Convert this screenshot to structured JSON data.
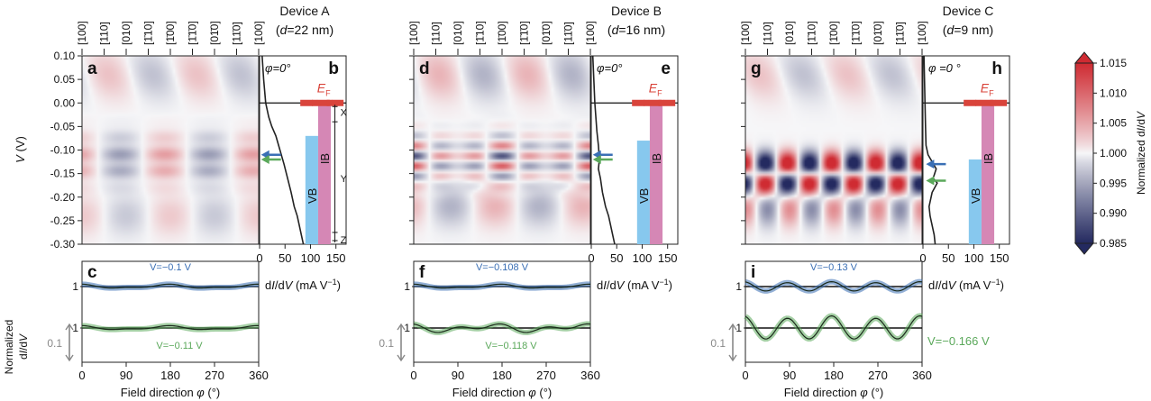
{
  "devices": [
    {
      "title": "Device A",
      "thickness": "(d=22 nm)",
      "phi_label": "φ=0°",
      "map_letter": "a",
      "spectrum_letter": "b",
      "osc_letter": "c",
      "v_blue": "V=−0.1 V",
      "v_green": "V=−0.11 V",
      "ef_label": "EF",
      "vb_label": "VB",
      "ib_label": "IB",
      "region_labels": [
        "X",
        "Y",
        "Z"
      ]
    },
    {
      "title": "Device B",
      "thickness": "(d=16 nm)",
      "phi_label": "φ=0°",
      "map_letter": "d",
      "spectrum_letter": "e",
      "osc_letter": "f",
      "v_blue": "V=−0.108 V",
      "v_green": "V=−0.118 V",
      "ef_label": "EF",
      "vb_label": "VB",
      "ib_label": "IB",
      "region_labels": []
    },
    {
      "title": "Device C",
      "thickness": "(d=9 nm)",
      "phi_label": "φ =0 °",
      "map_letter": "g",
      "spectrum_letter": "h",
      "osc_letter": "i",
      "v_blue": "V=−0.13 V",
      "v_green": "V=−0.166 V",
      "ef_label": "EF",
      "vb_label": "VB",
      "ib_label": "IB",
      "region_labels": []
    }
  ],
  "direction_labels": [
    "[100]",
    "[110]",
    "[010]",
    "[1̄10]",
    "[1̄00]",
    "[1̄1̄0]",
    "[01̄0]",
    "[11̄0]",
    "[100]"
  ],
  "axes": {
    "v_label": "V (V)",
    "v_ticks": [
      "0.10",
      "0.05",
      "0.00",
      "-0.05",
      "-0.10",
      "-0.15",
      "-0.20",
      "-0.25",
      "-0.30"
    ],
    "didv_label": "dI/dV (mA V−1)",
    "didv_ticks": [
      "0",
      "50",
      "100",
      "150"
    ],
    "phi_label": "Field direction φ (°)",
    "phi_ticks": [
      "0",
      "90",
      "180",
      "270",
      "360"
    ],
    "norm_label_line1": "Normalized",
    "norm_label_line2": "dI/dV",
    "one_label": "1",
    "scale_label": "0.1"
  },
  "colorbar": {
    "label": "Normalized dI/dV",
    "ticks": [
      "1.015",
      "1.010",
      "1.005",
      "1.000",
      "0.995",
      "0.990",
      "0.985"
    ]
  },
  "colors": {
    "red": "#d7373c",
    "blue": "#2c3a78",
    "arrow_blue": "#3a6fb5",
    "arrow_green": "#5aa85a",
    "vb": "#87c8ee",
    "ib": "#d587b5",
    "ef": "#d9443b",
    "text_blue": "#3a6fb5",
    "text_green": "#5aa85a"
  },
  "chart_data": [
    {
      "type": "heatmap",
      "panel": "a",
      "x_range": [
        0,
        360
      ],
      "y_range": [
        -0.3,
        0.1
      ],
      "color_range": [
        0.985,
        1.015
      ],
      "amplitude": 0.006,
      "fourfold_weight": 0.15
    },
    {
      "type": "line",
      "panel": "b",
      "xlabel": "dI/dV (mA V−1)",
      "x_range": [
        0,
        170
      ],
      "y_range": [
        -0.3,
        0.1
      ],
      "x": [
        5,
        8,
        12,
        18,
        24,
        32,
        40,
        48,
        55,
        62,
        68,
        74,
        78,
        82,
        86
      ],
      "y": [
        0.1,
        0.05,
        0.0,
        -0.03,
        -0.05,
        -0.07,
        -0.1,
        -0.13,
        -0.16,
        -0.19,
        -0.22,
        -0.24,
        -0.26,
        -0.28,
        -0.3
      ],
      "vb_edge": -0.07,
      "ib_top": 0.0,
      "fermi_level": 0.0
    },
    {
      "type": "line",
      "panel": "c",
      "x_range": [
        0,
        360
      ],
      "series": [
        {
          "name": "V=−0.1 V",
          "amplitude": 0.006,
          "fourfold": 0.3
        },
        {
          "name": "V=−0.11 V",
          "amplitude": 0.006,
          "fourfold": 0.3
        }
      ]
    },
    {
      "type": "heatmap",
      "panel": "d",
      "x_range": [
        0,
        360
      ],
      "y_range": [
        -0.3,
        0.1
      ],
      "color_range": [
        0.985,
        1.015
      ],
      "amplitude": 0.012,
      "fourfold_weight": 0.4
    },
    {
      "type": "line",
      "panel": "e",
      "xlabel": "dI/dV (mA V−1)",
      "x_range": [
        0,
        170
      ],
      "y_range": [
        -0.3,
        0.1
      ],
      "x": [
        3,
        5,
        7,
        9,
        11,
        14,
        16,
        14,
        18,
        22,
        28,
        34,
        38,
        42,
        46
      ],
      "y": [
        0.1,
        0.05,
        0.0,
        -0.03,
        -0.06,
        -0.09,
        -0.12,
        -0.14,
        -0.16,
        -0.19,
        -0.22,
        -0.24,
        -0.26,
        -0.28,
        -0.3
      ],
      "vb_edge": -0.08,
      "ib_top": 0.0,
      "fermi_level": 0.0
    },
    {
      "type": "line",
      "panel": "f",
      "x_range": [
        0,
        360
      ],
      "series": [
        {
          "name": "V=−0.108 V",
          "amplitude": 0.006,
          "fourfold": 0.3
        },
        {
          "name": "V=−0.118 V",
          "amplitude": 0.012,
          "fourfold": 0.5
        }
      ]
    },
    {
      "type": "heatmap",
      "panel": "g",
      "x_range": [
        0,
        360
      ],
      "y_range": [
        -0.3,
        0.1
      ],
      "color_range": [
        0.985,
        1.015
      ],
      "amplitude": 0.02,
      "fourfold_weight": 0.8
    },
    {
      "type": "line",
      "panel": "h",
      "xlabel": "dI/dV (mA V−1)",
      "x_range": [
        0,
        170
      ],
      "y_range": [
        -0.3,
        0.1
      ],
      "x": [
        2,
        3,
        4,
        5,
        6,
        10,
        26,
        20,
        28,
        18,
        12,
        14,
        18,
        22,
        24
      ],
      "y": [
        0.1,
        0.05,
        0.0,
        -0.05,
        -0.09,
        -0.11,
        -0.14,
        -0.16,
        -0.17,
        -0.19,
        -0.22,
        -0.24,
        -0.26,
        -0.28,
        -0.3
      ],
      "vb_edge": -0.12,
      "ib_top": 0.0,
      "fermi_level": 0.0
    },
    {
      "type": "line",
      "panel": "i",
      "x_range": [
        0,
        360
      ],
      "series": [
        {
          "name": "V=−0.13 V",
          "amplitude": 0.012,
          "fourfold": 0.9
        },
        {
          "name": "V=−0.166 V",
          "amplitude": 0.03,
          "fourfold": 0.9
        }
      ]
    }
  ]
}
